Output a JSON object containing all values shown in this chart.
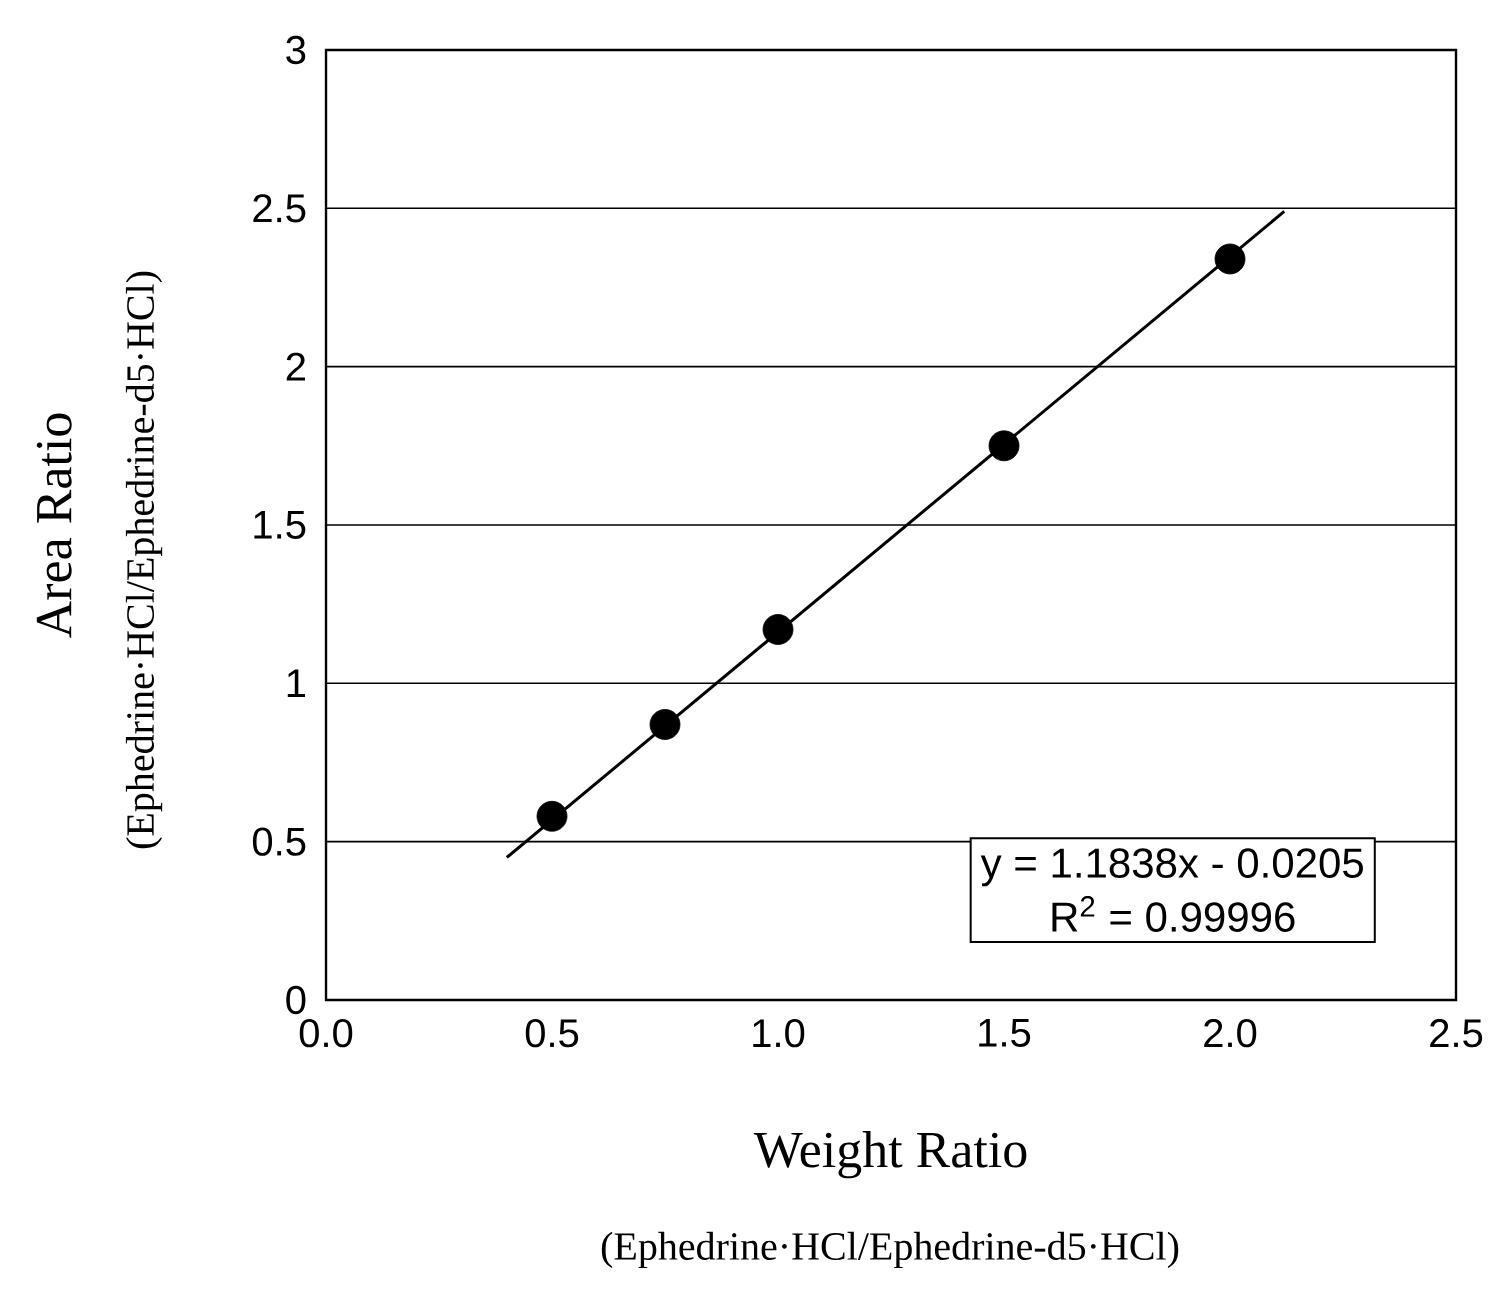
{
  "chart_data": {
    "type": "scatter",
    "ylabel": "Area Ratio",
    "xlabel": "Weight Ratio",
    "series": [
      {
        "color": "#000000",
        "marker": "circle",
        "x": [
          0.5,
          0.75,
          1.0,
          1.5,
          2.0
        ],
        "values": [
          0.58,
          0.87,
          1.17,
          1.75,
          2.34
        ]
      },
      {
        "type": "line",
        "color": "#000000",
        "marker": "none",
        "line_style": "solid",
        "x": [
          0.4,
          2.12
        ],
        "values": [
          0.45,
          2.49
        ]
      }
    ],
    "xlim": [
      0,
      2.5
    ],
    "ylim": [
      0,
      3
    ],
    "xticks": [
      {
        "value": 0,
        "label": "0.0"
      },
      0.5,
      {
        "value": 1,
        "label": "1.0"
      },
      1.5,
      {
        "value": 2,
        "label": "2.0"
      },
      2.5
    ],
    "yticks": [
      0,
      0.5,
      1,
      1.5,
      2,
      2.5,
      3
    ],
    "grid": "y",
    "annotations": [
      "y = 1.1838x - 0.0205",
      "R$^{2}$ = 0.99996",
      "(Ephedrine·HCl/Ephedrine-d5·HCl)",
      "(Ephedrine·HCl/Ephedrine-d5·HCl)"
    ]
  }
}
